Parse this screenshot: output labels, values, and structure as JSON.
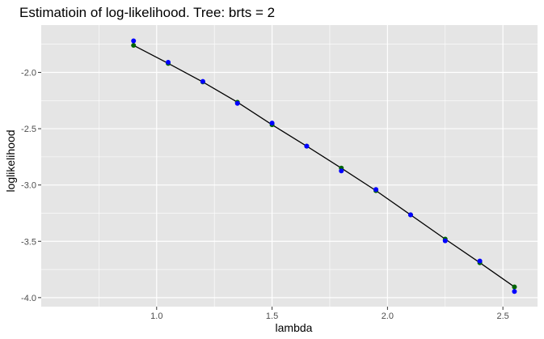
{
  "chart_data": {
    "type": "scatter",
    "title": "Estimatioin of log-likelihood. Tree: brts = 2",
    "xlabel": "lambda",
    "ylabel": "loglikelihood",
    "xlim": [
      0.5,
      2.65
    ],
    "ylim": [
      -4.08,
      -1.58
    ],
    "x_ticks": [
      1.0,
      1.5,
      2.0,
      2.5
    ],
    "x_tick_labels": [
      "1.0",
      "1.5",
      "2.0",
      "2.5"
    ],
    "x_minor_ticks": [
      0.75,
      1.25,
      1.75,
      2.25
    ],
    "y_ticks": [
      -2.0,
      -2.5,
      -3.0,
      -3.5,
      -4.0
    ],
    "y_tick_labels": [
      "-2.0",
      "-2.5",
      "-3.0",
      "-3.5",
      "-4.0"
    ],
    "y_minor_ticks": [
      -1.75,
      -2.25,
      -2.75,
      -3.25,
      -3.75
    ],
    "grid": true,
    "legend": "none",
    "colors": {
      "panel": "#e5e5e5",
      "grid": "#ffffff",
      "line": "#000000",
      "green_points": "#006400",
      "blue_points": "#0000ff"
    },
    "x": [
      0.9,
      1.05,
      1.2,
      1.35,
      1.5,
      1.65,
      1.8,
      1.95,
      2.1,
      2.25,
      2.4,
      2.55
    ],
    "series": [
      {
        "kind": "line",
        "color": "#000000",
        "values": [
          -1.76,
          -1.92,
          -2.085,
          -2.265,
          -2.465,
          -2.655,
          -2.85,
          -3.05,
          -3.265,
          -3.48,
          -3.69,
          -3.905
        ]
      },
      {
        "kind": "points",
        "color": "#006400",
        "values": [
          -1.76,
          -1.92,
          -2.085,
          -2.265,
          -2.465,
          -2.655,
          -2.85,
          -3.05,
          -3.265,
          -3.48,
          -3.69,
          -3.905
        ]
      },
      {
        "kind": "points",
        "color": "#0000ff",
        "values": [
          -1.72,
          -1.91,
          -2.08,
          -2.275,
          -2.45,
          -2.655,
          -2.875,
          -3.04,
          -3.265,
          -3.495,
          -3.675,
          -3.945
        ]
      }
    ]
  }
}
